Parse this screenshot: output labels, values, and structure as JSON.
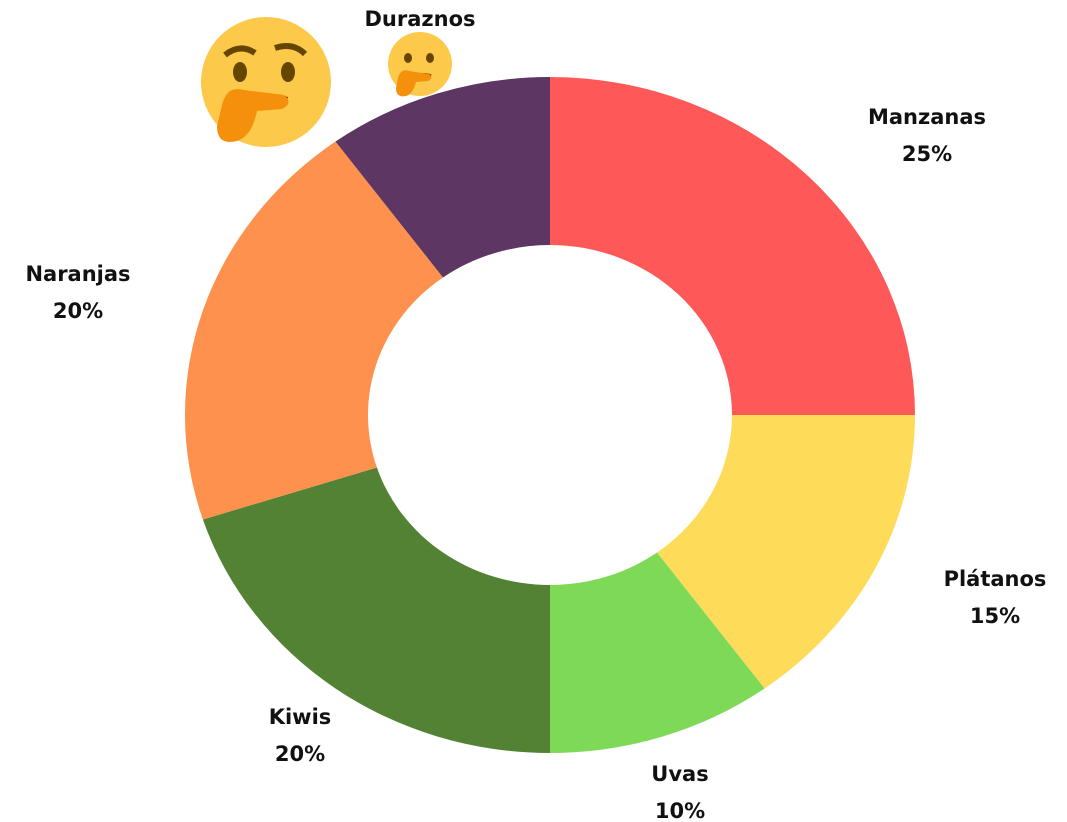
{
  "chart_data": {
    "type": "donut",
    "categories": [
      "Manzanas",
      "Plátanos",
      "Uvas",
      "Kiwis",
      "Naranjas",
      "Duraznos"
    ],
    "values": [
      25,
      15,
      10,
      20,
      20,
      10
    ],
    "value_labels": [
      "25%",
      "15%",
      "10%",
      "20%",
      "20%",
      null
    ],
    "colors": [
      "#fe5858",
      "#fedb58",
      "#7ed957",
      "#548235",
      "#fe914d",
      "#5e3663"
    ]
  }
}
